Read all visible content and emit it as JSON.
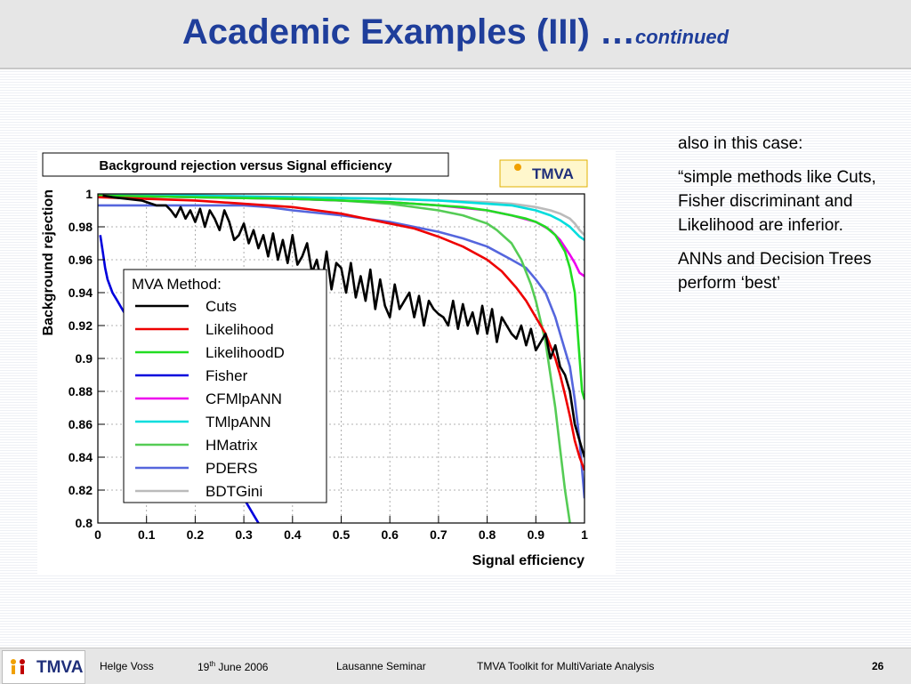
{
  "slide": {
    "title": "Academic Examples (III) …",
    "title_suffix": "continued"
  },
  "side_text": {
    "p1": "also in this case:",
    "p2": "“simple methods like Cuts, Fisher discriminant and Likelihood are inferior.",
    "p3": "ANNs and Decision Trees perform ‘best’"
  },
  "footer": {
    "logo_text": "TMVA",
    "author": "Helge Voss",
    "date_day": "19",
    "date_sup": "th",
    "date_rest": " June 2006",
    "event": "Lausanne Seminar",
    "toolkit": "TMVA Toolkit for MultiVariate Analysis",
    "page": "26"
  },
  "chart_logo": "TMVA",
  "chart_data": {
    "type": "line",
    "title": "Background rejection versus Signal efficiency",
    "xlabel": "Signal efficiency",
    "ylabel": "Background rejection",
    "xlim": [
      0,
      1
    ],
    "ylim": [
      0.8,
      1
    ],
    "grid": true,
    "legend_title": "MVA Method:",
    "legend_position": "left",
    "xticks": [
      "0",
      "0.1",
      "0.2",
      "0.3",
      "0.4",
      "0.5",
      "0.6",
      "0.7",
      "0.8",
      "0.9",
      "1"
    ],
    "yticks": [
      "0.8",
      "0.82",
      "0.84",
      "0.86",
      "0.88",
      "0.9",
      "0.92",
      "0.94",
      "0.96",
      "0.98",
      "1"
    ],
    "series": [
      {
        "name": "Cuts",
        "color": "#000000",
        "x": [
          0.01,
          0.03,
          0.06,
          0.09,
          0.12,
          0.14,
          0.15,
          0.16,
          0.17,
          0.18,
          0.19,
          0.2,
          0.21,
          0.22,
          0.23,
          0.24,
          0.25,
          0.26,
          0.27,
          0.28,
          0.29,
          0.3,
          0.31,
          0.32,
          0.33,
          0.34,
          0.35,
          0.36,
          0.37,
          0.38,
          0.39,
          0.4,
          0.41,
          0.42,
          0.43,
          0.44,
          0.45,
          0.46,
          0.47,
          0.48,
          0.49,
          0.5,
          0.51,
          0.52,
          0.53,
          0.54,
          0.55,
          0.56,
          0.57,
          0.58,
          0.59,
          0.6,
          0.61,
          0.62,
          0.63,
          0.64,
          0.65,
          0.66,
          0.67,
          0.68,
          0.69,
          0.7,
          0.71,
          0.72,
          0.73,
          0.74,
          0.75,
          0.76,
          0.77,
          0.78,
          0.79,
          0.8,
          0.81,
          0.82,
          0.83,
          0.84,
          0.85,
          0.86,
          0.87,
          0.88,
          0.89,
          0.9,
          0.91,
          0.92,
          0.93,
          0.94,
          0.95,
          0.96,
          0.97,
          0.98,
          0.99,
          1.0
        ],
        "y": [
          0.999,
          0.998,
          0.997,
          0.996,
          0.993,
          0.993,
          0.99,
          0.986,
          0.992,
          0.985,
          0.99,
          0.983,
          0.991,
          0.98,
          0.99,
          0.985,
          0.978,
          0.99,
          0.983,
          0.972,
          0.975,
          0.982,
          0.97,
          0.978,
          0.967,
          0.975,
          0.962,
          0.976,
          0.96,
          0.972,
          0.958,
          0.975,
          0.957,
          0.962,
          0.97,
          0.952,
          0.96,
          0.945,
          0.965,
          0.942,
          0.958,
          0.955,
          0.94,
          0.958,
          0.937,
          0.95,
          0.935,
          0.954,
          0.93,
          0.948,
          0.932,
          0.925,
          0.945,
          0.93,
          0.935,
          0.94,
          0.925,
          0.938,
          0.92,
          0.935,
          0.93,
          0.927,
          0.925,
          0.92,
          0.935,
          0.918,
          0.933,
          0.92,
          0.928,
          0.915,
          0.932,
          0.915,
          0.93,
          0.91,
          0.925,
          0.92,
          0.915,
          0.912,
          0.92,
          0.908,
          0.918,
          0.905,
          0.91,
          0.915,
          0.9,
          0.908,
          0.895,
          0.89,
          0.88,
          0.86,
          0.85,
          0.84
        ]
      },
      {
        "name": "Likelihood",
        "color": "#ee0000",
        "x": [
          0,
          0.1,
          0.2,
          0.3,
          0.35,
          0.4,
          0.45,
          0.5,
          0.55,
          0.6,
          0.65,
          0.7,
          0.75,
          0.8,
          0.83,
          0.86,
          0.88,
          0.9,
          0.92,
          0.94,
          0.95,
          0.96,
          0.97,
          0.98,
          0.99,
          1.0
        ],
        "y": [
          0.998,
          0.997,
          0.996,
          0.994,
          0.993,
          0.992,
          0.99,
          0.988,
          0.985,
          0.982,
          0.979,
          0.974,
          0.968,
          0.96,
          0.953,
          0.943,
          0.935,
          0.925,
          0.915,
          0.9,
          0.89,
          0.878,
          0.865,
          0.85,
          0.84,
          0.832
        ]
      },
      {
        "name": "LikelihoodD",
        "color": "#22dd22",
        "x": [
          0,
          0.2,
          0.4,
          0.5,
          0.6,
          0.7,
          0.75,
          0.8,
          0.85,
          0.88,
          0.9,
          0.92,
          0.94,
          0.95,
          0.96,
          0.97,
          0.98,
          0.985,
          0.99,
          0.995,
          1.0
        ],
        "y": [
          0.999,
          0.998,
          0.997,
          0.996,
          0.995,
          0.993,
          0.992,
          0.99,
          0.987,
          0.985,
          0.983,
          0.98,
          0.975,
          0.97,
          0.965,
          0.955,
          0.94,
          0.92,
          0.9,
          0.88,
          0.875
        ]
      },
      {
        "name": "Fisher",
        "color": "#0000dd",
        "x": [
          0.005,
          0.01,
          0.015,
          0.02,
          0.03,
          0.04,
          0.05,
          0.06,
          0.08,
          0.1,
          0.12,
          0.14,
          0.16,
          0.18,
          0.2,
          0.22,
          0.24,
          0.26,
          0.28,
          0.3,
          0.32,
          0.34
        ],
        "y": [
          0.975,
          0.965,
          0.955,
          0.948,
          0.94,
          0.935,
          0.93,
          0.925,
          0.92,
          0.915,
          0.908,
          0.9,
          0.89,
          0.88,
          0.868,
          0.855,
          0.845,
          0.835,
          0.825,
          0.815,
          0.805,
          0.795
        ]
      },
      {
        "name": "CFMlpANN",
        "color": "#ee00ee",
        "x": [
          0,
          0.2,
          0.4,
          0.6,
          0.7,
          0.8,
          0.85,
          0.9,
          0.93,
          0.95,
          0.97,
          0.98,
          0.99,
          1.0
        ],
        "y": [
          0.999,
          0.998,
          0.997,
          0.995,
          0.993,
          0.99,
          0.987,
          0.983,
          0.978,
          0.972,
          0.963,
          0.958,
          0.952,
          0.95
        ]
      },
      {
        "name": "TMlpANN",
        "color": "#00dddd",
        "x": [
          0,
          0.2,
          0.4,
          0.6,
          0.7,
          0.8,
          0.85,
          0.9,
          0.93,
          0.95,
          0.97,
          0.98,
          0.99,
          1.0
        ],
        "y": [
          0.999,
          0.999,
          0.998,
          0.997,
          0.996,
          0.994,
          0.993,
          0.99,
          0.987,
          0.984,
          0.98,
          0.977,
          0.974,
          0.972
        ]
      },
      {
        "name": "HMatrix",
        "color": "#55cc55",
        "x": [
          0,
          0.2,
          0.4,
          0.5,
          0.6,
          0.7,
          0.75,
          0.8,
          0.82,
          0.85,
          0.87,
          0.89,
          0.9,
          0.92,
          0.93,
          0.94,
          0.95,
          0.96,
          0.97
        ],
        "y": [
          0.999,
          0.998,
          0.997,
          0.996,
          0.994,
          0.99,
          0.987,
          0.982,
          0.978,
          0.97,
          0.96,
          0.945,
          0.935,
          0.91,
          0.89,
          0.87,
          0.845,
          0.82,
          0.8
        ]
      },
      {
        "name": "PDERS",
        "color": "#5566dd",
        "x": [
          0,
          0.1,
          0.2,
          0.3,
          0.35,
          0.4,
          0.5,
          0.6,
          0.7,
          0.75,
          0.8,
          0.85,
          0.88,
          0.9,
          0.92,
          0.94,
          0.95,
          0.96,
          0.97,
          0.98,
          0.99,
          1.0
        ],
        "y": [
          0.993,
          0.993,
          0.993,
          0.993,
          0.992,
          0.99,
          0.987,
          0.983,
          0.977,
          0.973,
          0.968,
          0.96,
          0.955,
          0.948,
          0.94,
          0.925,
          0.915,
          0.905,
          0.895,
          0.875,
          0.85,
          0.815
        ]
      },
      {
        "name": "BDTGini",
        "color": "#bbbbbb",
        "x": [
          0,
          0.2,
          0.4,
          0.6,
          0.7,
          0.8,
          0.85,
          0.9,
          0.93,
          0.95,
          0.97,
          0.98,
          0.99,
          1.0
        ],
        "y": [
          0.999,
          0.999,
          0.998,
          0.997,
          0.996,
          0.995,
          0.994,
          0.992,
          0.99,
          0.988,
          0.985,
          0.982,
          0.978,
          0.975
        ]
      }
    ]
  }
}
